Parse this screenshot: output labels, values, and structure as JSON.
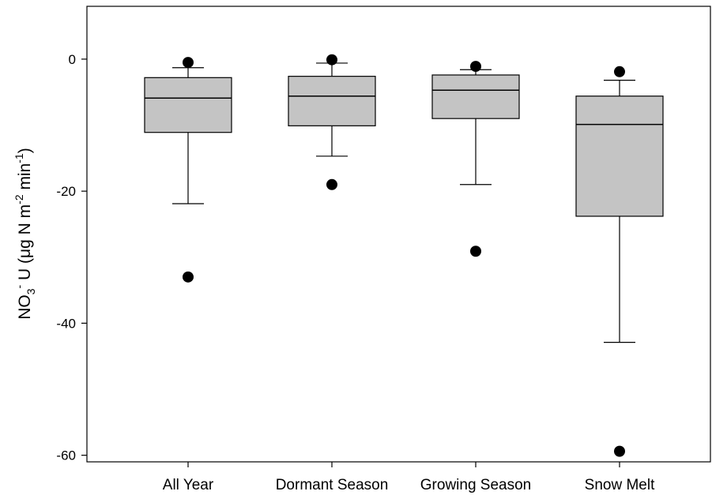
{
  "chart_data": {
    "type": "box",
    "categories": [
      "All Year",
      "Dormant Season",
      "Growing Season",
      "Snow Melt"
    ],
    "ylabel": [
      "NO",
      "3",
      "-",
      " U  (μg N m",
      "-2",
      " min",
      "-1",
      ")"
    ],
    "ylim": [
      -61,
      8
    ],
    "yticks": [
      0,
      -20,
      -40,
      -60
    ],
    "box_color": "#c4c4c4",
    "outlier_color": "#000000",
    "boxes": [
      {
        "whisker_low": -21.9,
        "q1": -11.1,
        "median": -5.9,
        "q3": -2.8,
        "whisker_high": -1.3,
        "outliers": [
          -0.5,
          -33
        ]
      },
      {
        "whisker_low": -14.7,
        "q1": -10.1,
        "median": -5.6,
        "q3": -2.6,
        "whisker_high": -0.6,
        "outliers": [
          -0.1,
          -19
        ]
      },
      {
        "whisker_low": -19.0,
        "q1": -9.0,
        "median": -4.7,
        "q3": -2.4,
        "whisker_high": -1.6,
        "outliers": [
          -1.1,
          -29.1
        ]
      },
      {
        "whisker_low": -42.9,
        "q1": -23.8,
        "median": -9.9,
        "q3": -5.6,
        "whisker_high": -3.2,
        "outliers": [
          -1.9,
          -59.4
        ]
      }
    ]
  }
}
